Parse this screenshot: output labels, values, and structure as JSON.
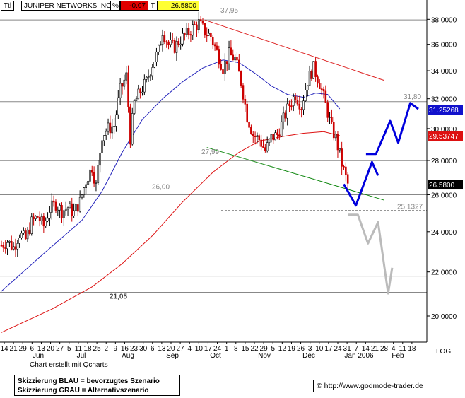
{
  "header": {
    "ttl": "Ttl",
    "name": "JUNIPER NETWORKS INC",
    "pct_label": "%",
    "change": "-0.07",
    "t_label": "T",
    "last": "26.5800"
  },
  "footer": {
    "created_prefix": "Chart erstellt mit ",
    "created_link": "Qcharts",
    "legend_blue": "Skizzierung BLAU = bevorzugtes Szenario",
    "legend_gray": "Skizzierung GRAU = Alternativszenario",
    "copyright_symbol": "©",
    "website": "http://www.godmode-trader.de"
  },
  "chart_data": {
    "type": "candlestick",
    "ylim": [
      18.9,
      39.5
    ],
    "y_ticks": [
      "38.0000",
      "36.0000",
      "34.0000",
      "32.0000",
      "30.0000",
      "28.0000",
      "26.0000",
      "24.0000",
      "22.0000",
      "20.0000"
    ],
    "y_tick_values": [
      38,
      36,
      34,
      32,
      30,
      28,
      26,
      24,
      22,
      20
    ],
    "axis_scale_label": "LOG",
    "x_day_labels": [
      "14",
      "21",
      "29",
      "6",
      "13",
      "20",
      "27",
      "5",
      "11",
      "18",
      "25",
      "2",
      "9",
      "16",
      "23",
      "30",
      "6",
      "13",
      "20",
      "27",
      "4",
      "10",
      "17",
      "24",
      "1",
      "8",
      "15",
      "22",
      "29",
      "5",
      "12",
      "19",
      "26",
      "3",
      "10",
      "17",
      "24",
      "31",
      "7",
      "14",
      "21",
      "28",
      "4",
      "11",
      "18"
    ],
    "x_month_labels": [
      "Jun",
      "Jul",
      "Aug",
      "Sep",
      "Oct",
      "Nov",
      "Dec",
      "Jan 2006",
      "Feb"
    ],
    "colors": {
      "up": "#000000",
      "down": "#cc0000",
      "ma_short": "#2222bb",
      "ma_long": "#dd1111",
      "trend_down": "#dd2222",
      "support": "#118811",
      "blue_path": "#0000dd",
      "gray_path": "#bbbbbb",
      "hlines": "#888888"
    },
    "price_labels": [
      {
        "text": "37,95",
        "value": 37.95
      },
      {
        "text": "31,80",
        "value": 31.8
      },
      {
        "text": "27,99",
        "value": 27.99
      },
      {
        "text": "26,00",
        "value": 26.0
      },
      {
        "text": "25,1327",
        "value": 25.1327
      },
      {
        "text": "21,05",
        "value": 21.05
      }
    ],
    "value_tags": [
      {
        "text": "31.25268",
        "value": 31.25268,
        "color": "#1111cc"
      },
      {
        "text": "29.53747",
        "value": 29.53747,
        "color": "#dd1111"
      },
      {
        "text": "26.5800",
        "value": 26.58,
        "color": "#000000"
      }
    ],
    "horizontal_levels": [
      {
        "value": 37.95,
        "style": "solid"
      },
      {
        "value": 31.8,
        "style": "solid"
      },
      {
        "value": 27.99,
        "style": "solid"
      },
      {
        "value": 26.0,
        "style": "solid"
      },
      {
        "value": 25.1327,
        "style": "dashed"
      },
      {
        "value": 21.8,
        "style": "solid"
      },
      {
        "value": 21.05,
        "style": "solid"
      }
    ],
    "close_series": [
      {
        "day": 0,
        "close": 23.3
      },
      {
        "day": 3,
        "close": 23.5
      },
      {
        "day": 6,
        "close": 23.2
      },
      {
        "day": 9,
        "close": 23.9
      },
      {
        "day": 12,
        "close": 23.6
      },
      {
        "day": 15,
        "close": 24.5
      },
      {
        "day": 18,
        "close": 24.8
      },
      {
        "day": 21,
        "close": 24.3
      },
      {
        "day": 24,
        "close": 25.2
      },
      {
        "day": 27,
        "close": 25.5
      },
      {
        "day": 30,
        "close": 25.1
      },
      {
        "day": 33,
        "close": 25.3
      },
      {
        "day": 36,
        "close": 25.0
      },
      {
        "day": 39,
        "close": 25.6
      },
      {
        "day": 42,
        "close": 26.8
      },
      {
        "day": 45,
        "close": 27.6
      },
      {
        "day": 47,
        "close": 26.5
      },
      {
        "day": 50,
        "close": 29.6
      },
      {
        "day": 53,
        "close": 30.0
      },
      {
        "day": 56,
        "close": 30.2
      },
      {
        "day": 59,
        "close": 32.6
      },
      {
        "day": 62,
        "close": 33.6
      },
      {
        "day": 64,
        "close": 29.4
      },
      {
        "day": 66,
        "close": 31.7
      },
      {
        "day": 69,
        "close": 32.5
      },
      {
        "day": 72,
        "close": 33.2
      },
      {
        "day": 75,
        "close": 34.5
      },
      {
        "day": 78,
        "close": 35.5
      },
      {
        "day": 80,
        "close": 37.1
      },
      {
        "day": 83,
        "close": 36.0
      },
      {
        "day": 86,
        "close": 35.8
      },
      {
        "day": 89,
        "close": 36.4
      },
      {
        "day": 92,
        "close": 36.8
      },
      {
        "day": 95,
        "close": 37.3
      },
      {
        "day": 98,
        "close": 37.7
      },
      {
        "day": 101,
        "close": 37.0
      },
      {
        "day": 104,
        "close": 36.6
      },
      {
        "day": 107,
        "close": 35.4
      },
      {
        "day": 110,
        "close": 34.2
      },
      {
        "day": 113,
        "close": 35.2
      },
      {
        "day": 116,
        "close": 34.9
      },
      {
        "day": 119,
        "close": 33.2
      },
      {
        "day": 122,
        "close": 30.8
      },
      {
        "day": 125,
        "close": 29.6
      },
      {
        "day": 128,
        "close": 29.3
      },
      {
        "day": 131,
        "close": 28.6
      },
      {
        "day": 134,
        "close": 29.4
      },
      {
        "day": 137,
        "close": 29.6
      },
      {
        "day": 140,
        "close": 30.6
      },
      {
        "day": 143,
        "close": 31.6
      },
      {
        "day": 146,
        "close": 32.3
      },
      {
        "day": 149,
        "close": 31.5
      },
      {
        "day": 152,
        "close": 33.3
      },
      {
        "day": 155,
        "close": 34.2
      },
      {
        "day": 158,
        "close": 33.1
      },
      {
        "day": 161,
        "close": 31.6
      },
      {
        "day": 164,
        "close": 30.0
      },
      {
        "day": 166,
        "close": 29.4
      },
      {
        "day": 169,
        "close": 27.8
      },
      {
        "day": 172,
        "close": 26.6
      }
    ],
    "ma_short_series": [
      {
        "day": 0,
        "value": 21.1
      },
      {
        "day": 20,
        "value": 22.8
      },
      {
        "day": 40,
        "value": 24.6
      },
      {
        "day": 50,
        "value": 26.2
      },
      {
        "day": 60,
        "value": 28.5
      },
      {
        "day": 70,
        "value": 30.6
      },
      {
        "day": 80,
        "value": 32.0
      },
      {
        "day": 90,
        "value": 33.2
      },
      {
        "day": 100,
        "value": 34.2
      },
      {
        "day": 110,
        "value": 34.8
      },
      {
        "day": 118,
        "value": 34.6
      },
      {
        "day": 126,
        "value": 33.8
      },
      {
        "day": 134,
        "value": 32.9
      },
      {
        "day": 142,
        "value": 32.3
      },
      {
        "day": 150,
        "value": 32.1
      },
      {
        "day": 156,
        "value": 32.4
      },
      {
        "day": 162,
        "value": 32.3
      },
      {
        "day": 168,
        "value": 31.3
      }
    ],
    "ma_long_series": [
      {
        "day": 0,
        "value": 19.3
      },
      {
        "day": 25,
        "value": 20.3
      },
      {
        "day": 45,
        "value": 21.3
      },
      {
        "day": 60,
        "value": 22.4
      },
      {
        "day": 75,
        "value": 23.8
      },
      {
        "day": 90,
        "value": 25.6
      },
      {
        "day": 105,
        "value": 27.3
      },
      {
        "day": 118,
        "value": 28.5
      },
      {
        "day": 128,
        "value": 29.2
      },
      {
        "day": 140,
        "value": 29.5
      },
      {
        "day": 150,
        "value": 29.7
      },
      {
        "day": 160,
        "value": 29.8
      },
      {
        "day": 168,
        "value": 29.55
      }
    ],
    "trendline_resistance": [
      {
        "day": 101,
        "value": 37.95
      },
      {
        "day": 190,
        "value": 33.3
      }
    ],
    "trendline_support": [
      {
        "day": 102,
        "value": 28.8
      },
      {
        "day": 190,
        "value": 25.7
      }
    ],
    "blue_scenario_paths": [
      [
        {
          "day": 170,
          "value": 26.6
        },
        {
          "day": 176,
          "value": 25.4
        },
        {
          "day": 184,
          "value": 27.9
        },
        {
          "day": 187,
          "value": 27.1
        }
      ],
      [
        {
          "day": 181,
          "value": 28.4
        },
        {
          "day": 186,
          "value": 28.4
        },
        {
          "day": 193,
          "value": 30.5
        },
        {
          "day": 197,
          "value": 29.1
        },
        {
          "day": 203,
          "value": 31.7
        },
        {
          "day": 207,
          "value": 31.3
        }
      ]
    ],
    "gray_scenario_path": [
      {
        "day": 172,
        "value": 24.9
      },
      {
        "day": 177,
        "value": 24.9
      },
      {
        "day": 182,
        "value": 23.4
      },
      {
        "day": 187,
        "value": 24.5
      },
      {
        "day": 192,
        "value": 21.0
      },
      {
        "day": 194,
        "value": 22.2
      }
    ]
  }
}
